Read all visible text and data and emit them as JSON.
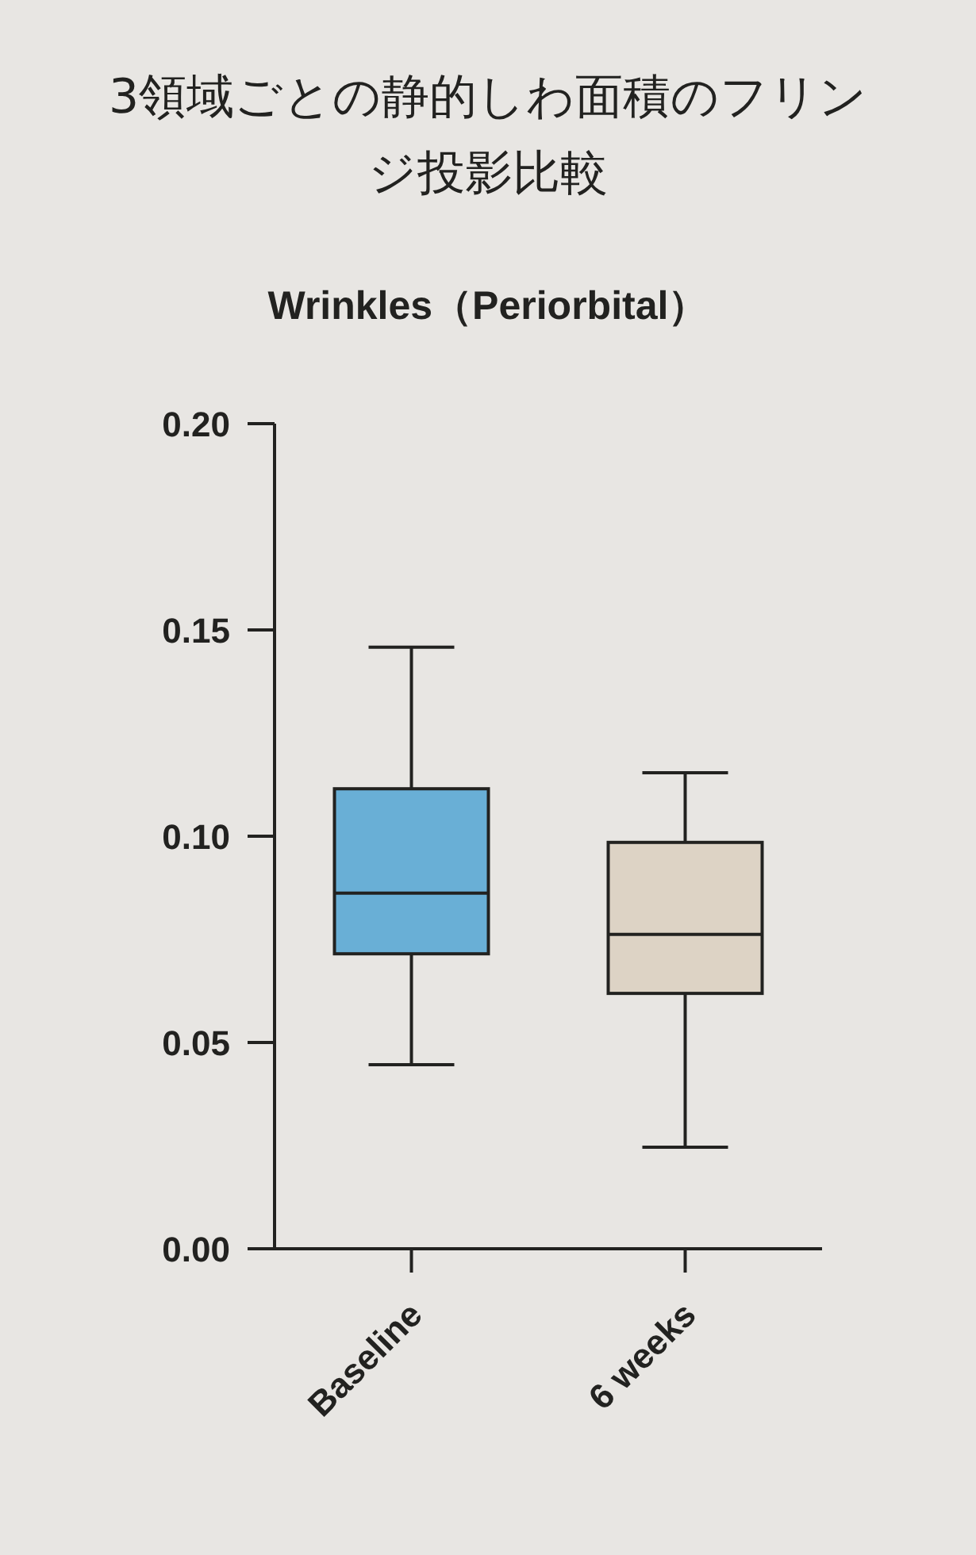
{
  "chart_data": {
    "type": "box",
    "title": "3領域ごとの静的しわ面積のフリンジ投影比較",
    "subtitle": "Wrinkles（Periorbital）",
    "categories": [
      "Baseline",
      "6 weeks"
    ],
    "boxes": [
      {
        "low": 0.0446,
        "q1": 0.0715,
        "median": 0.0862,
        "q3": 0.1115,
        "high": 0.1458
      },
      {
        "low": 0.0246,
        "q1": 0.0619,
        "median": 0.0762,
        "q3": 0.0985,
        "high": 0.1154
      }
    ],
    "colors": [
      "#69afd6",
      "#ddd3c5"
    ],
    "ylim": [
      0,
      0.2
    ],
    "yticks": [
      {
        "value": 0,
        "label": "0.00"
      },
      {
        "value": 0.05,
        "label": "0.05"
      },
      {
        "value": 0.1,
        "label": "0.10"
      },
      {
        "value": 0.15,
        "label": "0.15"
      },
      {
        "value": 0.2,
        "label": "0.20"
      }
    ]
  }
}
